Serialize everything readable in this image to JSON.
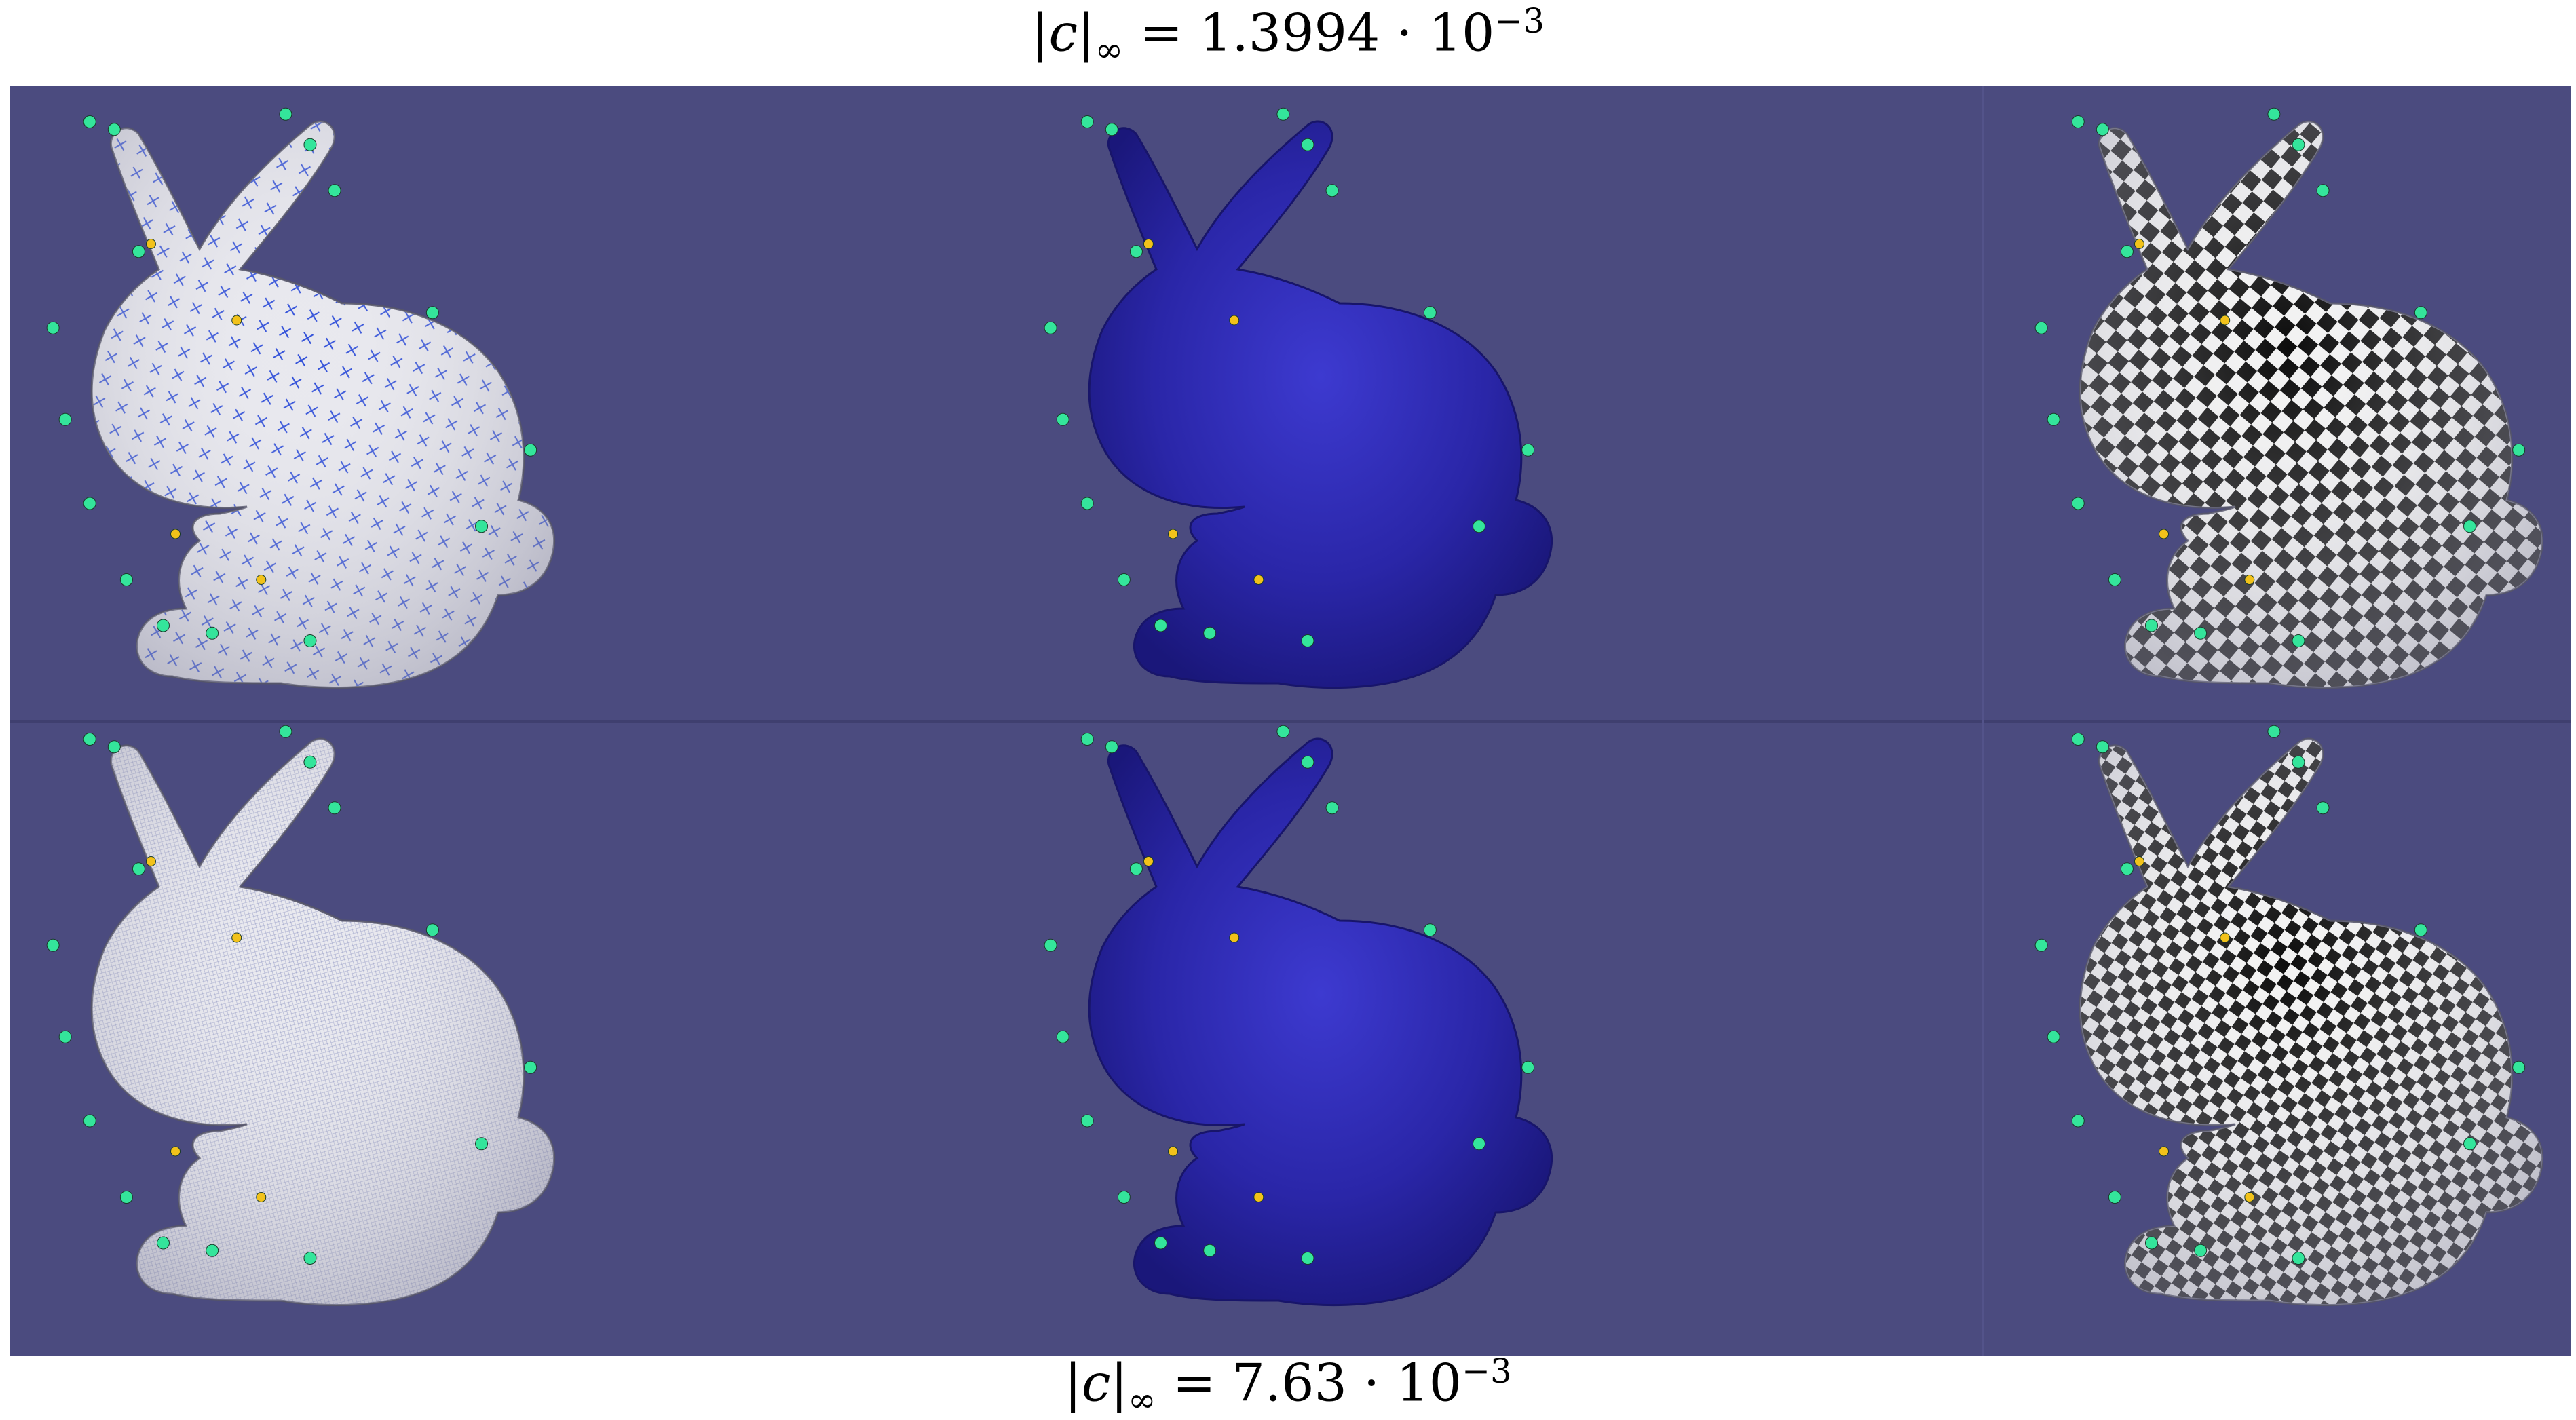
{
  "figure": {
    "top_caption": {
      "lhs": "|c|",
      "sub": "∞",
      "rhs": " = 1.3994 · 10",
      "exp": "−3"
    },
    "bottom_caption": {
      "lhs": "|c|",
      "sub": "∞",
      "rhs": " = 7.63 · 10",
      "exp": "−3"
    },
    "background_color": "#4b4b7f",
    "rows": [
      {
        "id": "coarse",
        "views": [
          "cross-field",
          "shaded",
          "checkerboard"
        ]
      },
      {
        "id": "fine",
        "views": [
          "cross-field",
          "shaded",
          "checkerboard"
        ]
      }
    ],
    "colors": {
      "mesh_white": "#e6e6ec",
      "mesh_blue": "#2d2aa0",
      "cross_marks": "#2b4bd8",
      "singularity_green": "#34e59b",
      "singularity_yellow": "#f2c21a"
    }
  }
}
